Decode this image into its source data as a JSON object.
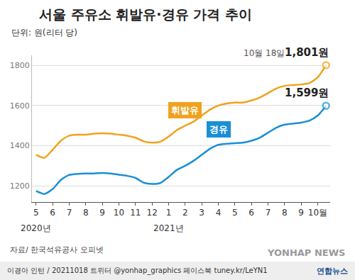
{
  "chart_data": {
    "type": "line",
    "title": "서울 주유소 휘발유·경유 가격 추이",
    "subtitle": "단위: 원(리터 당)",
    "categories": [
      "5",
      null,
      "6",
      null,
      "7",
      null,
      "8",
      null,
      "9",
      null,
      "10",
      null,
      "11",
      null,
      "12",
      null,
      "1",
      null,
      "2",
      null,
      "3",
      null,
      "4",
      null,
      "5",
      null,
      "6",
      null,
      "7",
      null,
      "8",
      null,
      "9",
      null,
      "10월",
      null
    ],
    "series": [
      {
        "name": "휘발유",
        "color": "#f0a21e",
        "values": [
          1355,
          1340,
          1380,
          1425,
          1450,
          1455,
          1455,
          1460,
          1462,
          1460,
          1455,
          1450,
          1440,
          1422,
          1415,
          1420,
          1445,
          1478,
          1500,
          1520,
          1550,
          1580,
          1600,
          1610,
          1615,
          1615,
          1625,
          1640,
          1662,
          1685,
          1698,
          1702,
          1705,
          1712,
          1740,
          1801
        ],
        "value_labels": [
          null,
          null,
          null,
          null,
          null,
          null,
          null,
          null,
          null,
          null,
          null,
          null,
          null,
          null,
          null,
          null,
          null,
          null,
          null,
          null,
          null,
          null,
          null,
          null,
          null,
          null,
          null,
          null,
          null,
          null,
          null,
          null,
          null,
          null,
          null,
          "1,801원"
        ]
      },
      {
        "name": "경유",
        "color": "#1a8fd6",
        "values": [
          1175,
          1160,
          1185,
          1230,
          1255,
          1260,
          1262,
          1262,
          1265,
          1262,
          1256,
          1250,
          1240,
          1216,
          1210,
          1215,
          1245,
          1280,
          1300,
          1325,
          1355,
          1385,
          1405,
          1410,
          1413,
          1415,
          1425,
          1440,
          1465,
          1490,
          1505,
          1510,
          1515,
          1525,
          1550,
          1599
        ],
        "value_labels": [
          null,
          null,
          null,
          null,
          null,
          null,
          null,
          null,
          null,
          null,
          null,
          null,
          null,
          null,
          null,
          null,
          null,
          null,
          null,
          null,
          null,
          null,
          null,
          null,
          null,
          null,
          null,
          null,
          null,
          null,
          null,
          null,
          null,
          null,
          null,
          "1,599원"
        ]
      }
    ],
    "ylim": [
      1120,
      1850
    ],
    "yticks": [
      1200,
      1400,
      1600,
      1800
    ],
    "grid": true,
    "annotations": [
      {
        "text": "10월 18일",
        "index": 35,
        "series": "휘발유"
      }
    ],
    "year_labels": [
      {
        "text": "2020년",
        "index": 0
      },
      {
        "text": "2021년",
        "index": 16
      }
    ],
    "source": "자료/ 한국석유공사 오피넷",
    "credit": "이경아 인턴 / 20211018 트위터 @yonhap_graphics 페이스북 tuney.kr/LeYN1",
    "publisher": "연합뉴스",
    "watermark": "YONHAP NEWS"
  }
}
